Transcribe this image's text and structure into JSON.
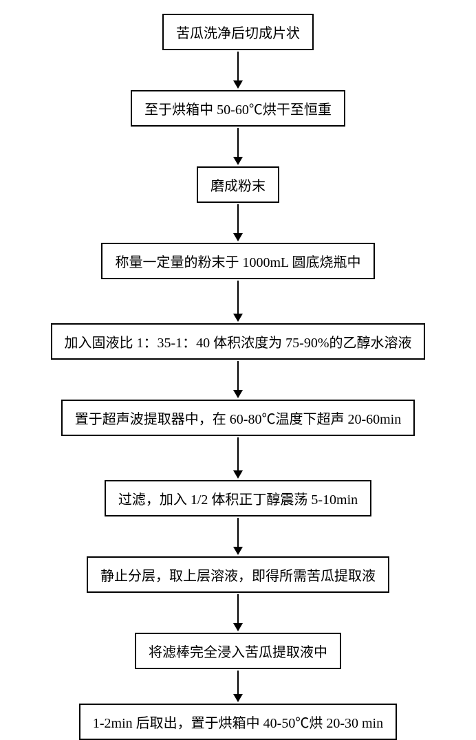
{
  "flowchart": {
    "type": "flowchart",
    "background_color": "#ffffff",
    "node_border_color": "#000000",
    "node_border_width": 2,
    "node_bg_color": "#ffffff",
    "arrow_color": "#000000",
    "arrow_line_width": 2,
    "arrow_head_width": 7,
    "arrow_head_height": 12,
    "font_family": "SimSun",
    "font_size": 20,
    "text_color": "#000000",
    "node_padding_v": 10,
    "node_padding_h": 18,
    "nodes": [
      {
        "label": "苦瓜洗净后切成片状",
        "arrow_after_height": 42
      },
      {
        "label": "至于烘箱中 50-60℃烘干至恒重",
        "arrow_after_height": 42
      },
      {
        "label": "磨成粉末",
        "arrow_after_height": 42
      },
      {
        "label": "称量一定量的粉末于 1000mL 圆底烧瓶中",
        "arrow_after_height": 48
      },
      {
        "label": "加入固液比 1：35-1：40 体积浓度为 75-90%的乙醇水溶液",
        "arrow_after_height": 42
      },
      {
        "label": "置于超声波提取器中，在 60-80℃温度下超声 20-60min",
        "arrow_after_height": 48
      },
      {
        "label": "过滤，加入 1/2 体积正丁醇震荡 5-10min",
        "arrow_after_height": 42
      },
      {
        "label": "静止分层，取上层溶液，即得所需苦瓜提取液",
        "arrow_after_height": 42
      },
      {
        "label": "将滤棒完全浸入苦瓜提取液中",
        "arrow_after_height": 34
      },
      {
        "label": "1-2min 后取出，置于烘箱中 40-50℃烘 20-30 min",
        "arrow_after_height": 0
      }
    ]
  }
}
